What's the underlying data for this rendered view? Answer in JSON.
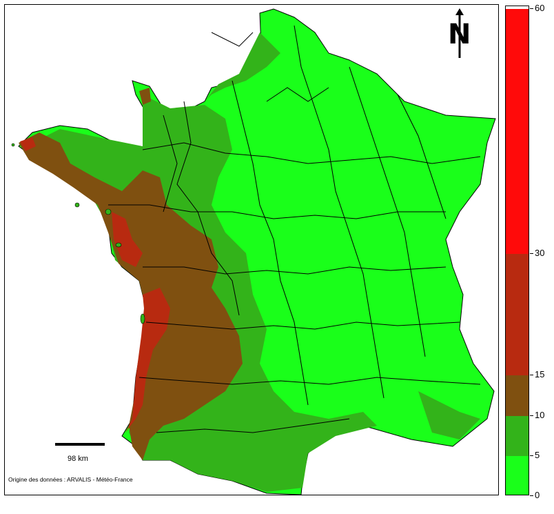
{
  "map": {
    "scale_label": "98 km",
    "credits": "Origine des données : ARVALIS - Météo-France",
    "north_label": "N",
    "north_icon": "north-arrow-icon",
    "colors": {
      "c0_5": "#1aff1a",
      "c5_10": "#33b31a",
      "c10_15": "#7f5010",
      "c15_30": "#b82a10",
      "c30_60": "#ff0a0a",
      "border": "#000000"
    }
  },
  "legend": {
    "max": 60,
    "bands": [
      {
        "from": 0,
        "to": 5,
        "color": "#1aff1a"
      },
      {
        "from": 5,
        "to": 10,
        "color": "#33b31a"
      },
      {
        "from": 10,
        "to": 15,
        "color": "#7f5010"
      },
      {
        "from": 15,
        "to": 30,
        "color": "#b82a10"
      },
      {
        "from": 30,
        "to": 60,
        "color": "#ff0a0a"
      }
    ],
    "tick_labels": [
      "0",
      "5",
      "10",
      "15",
      "30",
      "60"
    ]
  }
}
